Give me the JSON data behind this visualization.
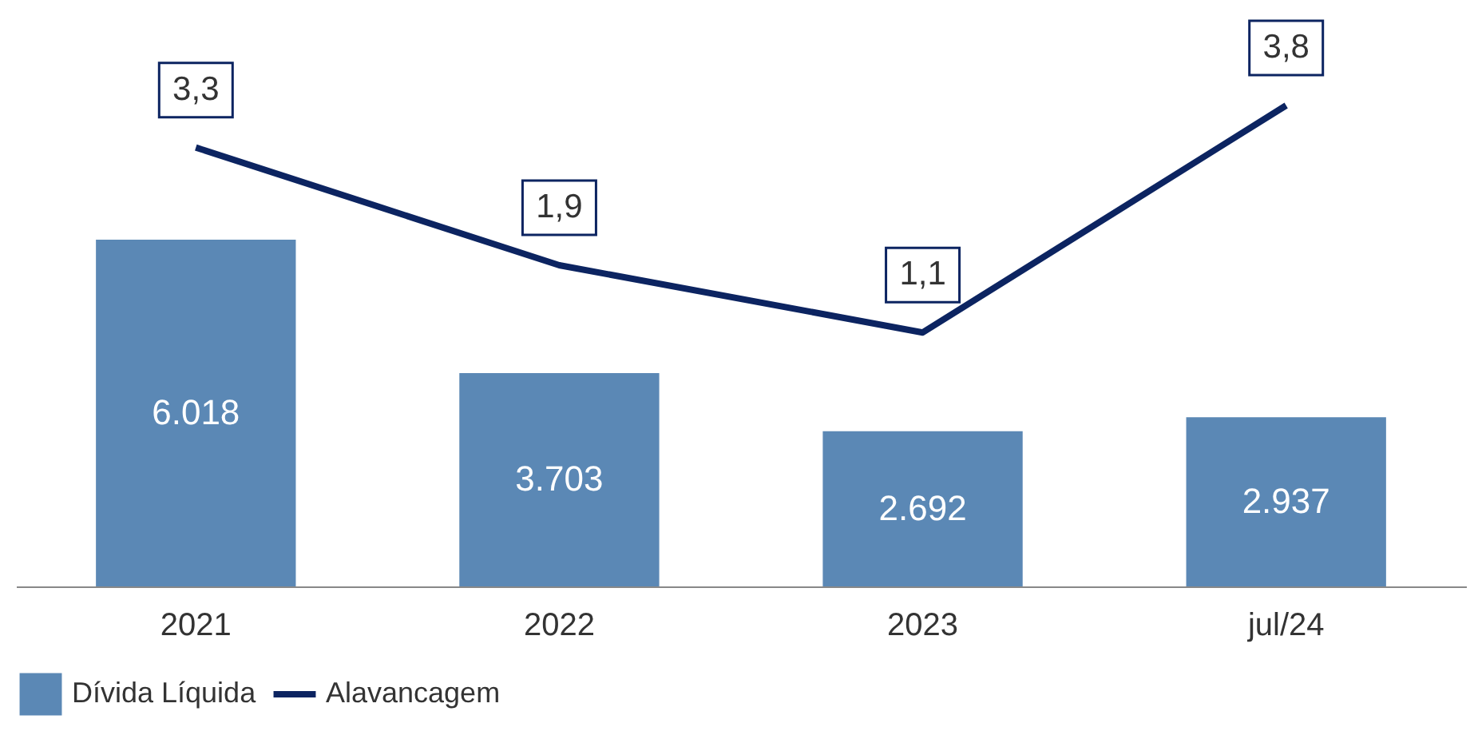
{
  "chart_data": {
    "type": "bar",
    "categories": [
      "2021",
      "2022",
      "2023",
      "jul/24"
    ],
    "series": [
      {
        "name": "Dívida Líquida",
        "color": "#5b88b5",
        "values": [
          6018,
          3703,
          2692,
          2937
        ],
        "value_labels": [
          "6.018",
          "3.703",
          "2.692",
          "2.937"
        ]
      },
      {
        "name": "Alavancagem",
        "type": "line",
        "axis": "y2",
        "color": "#0c2461",
        "values": [
          3.3,
          1.9,
          1.1,
          3.8
        ],
        "value_labels": [
          "3,3",
          "1,9",
          "1,1",
          "3,8"
        ]
      }
    ],
    "tick_labels": "x",
    "grid": false,
    "legend": "bottom",
    "marker": "none"
  }
}
